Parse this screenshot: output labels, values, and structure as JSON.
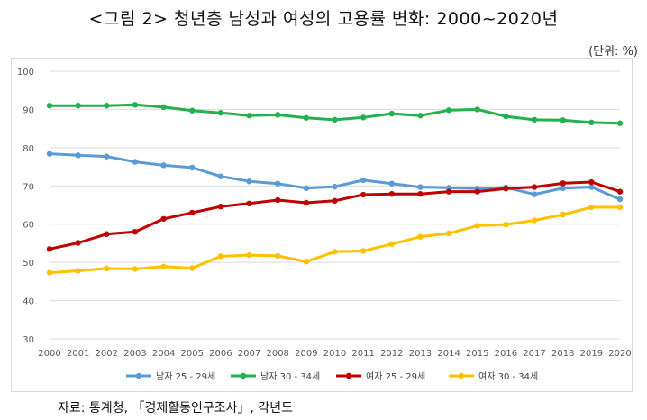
{
  "title": "<그림 2> 청년층 남성과 여성의 고용률 변화: 2000~2020년",
  "unit_note": "(단위: %)",
  "source": "자료: 통계청, 「경제활동인구조사」, 각년도",
  "chart_data": {
    "type": "line",
    "title": "",
    "xlabel": "",
    "ylabel": "",
    "ylim": [
      30,
      100
    ],
    "yticks": [
      30,
      40,
      50,
      60,
      70,
      80,
      90,
      100
    ],
    "grid": true,
    "legend_position": "bottom",
    "x": [
      "2000",
      "2001",
      "2002",
      "2003",
      "2004",
      "2005",
      "2006",
      "2007",
      "2008",
      "2009",
      "2010",
      "2011",
      "2012",
      "2013",
      "2014",
      "2015",
      "2016",
      "2017",
      "2018",
      "2019",
      "2020"
    ],
    "series": [
      {
        "name": "남자 25 - 29세",
        "color": "#5b9bd5",
        "values": [
          78.4,
          78.0,
          77.7,
          76.3,
          75.4,
          74.8,
          72.5,
          71.2,
          70.6,
          69.4,
          69.8,
          71.5,
          70.6,
          69.7,
          69.5,
          69.3,
          69.6,
          67.8,
          69.4,
          69.7,
          66.5
        ]
      },
      {
        "name": "남자 30 - 34세",
        "color": "#22b14c",
        "values": [
          91.0,
          91.0,
          91.0,
          91.2,
          90.6,
          89.7,
          89.1,
          88.4,
          88.6,
          87.8,
          87.3,
          87.9,
          88.9,
          88.4,
          89.8,
          90.0,
          88.2,
          87.3,
          87.2,
          86.6,
          86.4
        ]
      },
      {
        "name": "여자 25 - 29세",
        "color": "#c00000",
        "values": [
          53.5,
          55.1,
          57.4,
          58.0,
          61.4,
          63.0,
          64.6,
          65.4,
          66.3,
          65.6,
          66.1,
          67.7,
          67.9,
          67.9,
          68.5,
          68.5,
          69.3,
          69.7,
          70.7,
          71.0,
          68.5
        ]
      },
      {
        "name": "여자 30 - 34세",
        "color": "#ffc000",
        "values": [
          47.3,
          47.8,
          48.4,
          48.3,
          48.9,
          48.5,
          51.6,
          51.9,
          51.7,
          50.2,
          52.8,
          53.0,
          54.8,
          56.7,
          57.6,
          59.6,
          59.9,
          61.0,
          62.5,
          64.4,
          64.4
        ]
      }
    ]
  }
}
